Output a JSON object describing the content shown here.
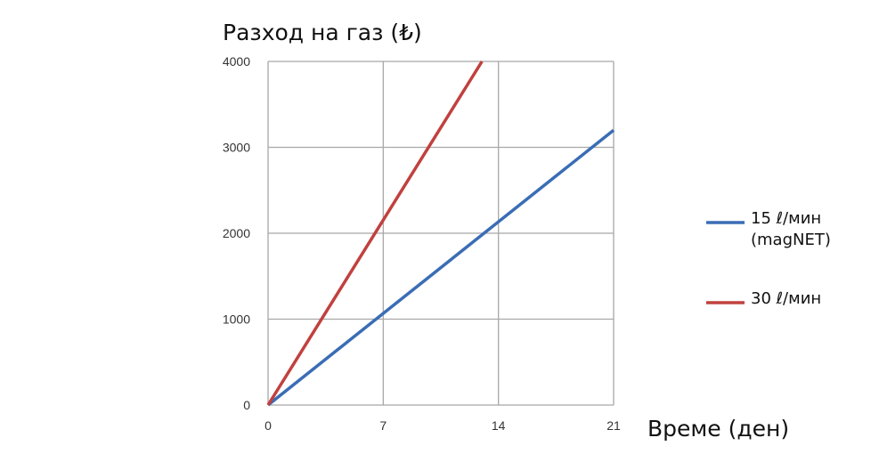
{
  "chart_data": {
    "type": "line",
    "title": "",
    "ylabel": "Разход на газ (₺)",
    "xlabel": "Време (ден)",
    "xlim": [
      0,
      21
    ],
    "ylim": [
      0,
      4000
    ],
    "xticks": [
      "0",
      "7",
      "14",
      "21"
    ],
    "yticks": [
      "0",
      "1000",
      "2000",
      "3000",
      "4000"
    ],
    "grid": true,
    "legend_position": "right",
    "series": [
      {
        "name": "15 ℓ/мин (magNET)",
        "name_lines": [
          "15 ℓ/мин",
          "(magNET)"
        ],
        "color": "#3a6db5",
        "x": [
          0,
          21
        ],
        "y": [
          0,
          3200
        ]
      },
      {
        "name": "30 ℓ/мин",
        "name_lines": [
          "30 ℓ/мин"
        ],
        "color": "#c0413e",
        "x": [
          0,
          13
        ],
        "y": [
          0,
          4000
        ]
      }
    ]
  }
}
